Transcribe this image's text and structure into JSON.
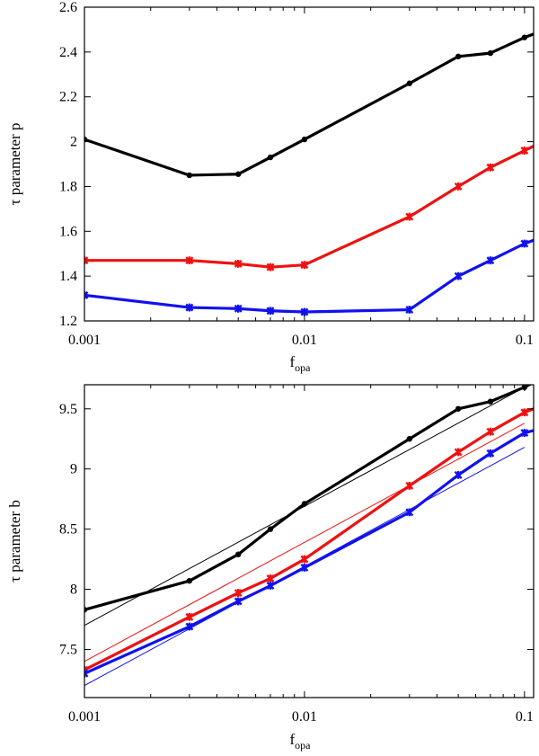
{
  "chart_data": [
    {
      "type": "line",
      "ylabel": "τ parameter p",
      "xlabel_main": "f",
      "xlabel_sub": "opa",
      "xscale": "log",
      "xlim": [
        0.001,
        0.11
      ],
      "ylim": [
        1.2,
        2.6
      ],
      "xticks": [
        0.001,
        0.01,
        0.1
      ],
      "xtick_labels": [
        "0.001",
        "0.01",
        "0.1"
      ],
      "yticks": [
        1.2,
        1.4,
        1.6,
        1.8,
        2.0,
        2.2,
        2.4,
        2.6
      ],
      "ytick_labels": [
        "1.2",
        "1.4",
        "1.6",
        "1.8",
        "2",
        "2.2",
        "2.4",
        "2.6"
      ],
      "series": [
        {
          "name": "black",
          "color": "#000000",
          "marker": "circle",
          "x": [
            0.001,
            0.003,
            0.005,
            0.007,
            0.01,
            0.03,
            0.05,
            0.07,
            0.1,
            0.11
          ],
          "y": [
            2.01,
            1.85,
            1.855,
            1.93,
            2.01,
            2.26,
            2.38,
            2.395,
            2.465,
            2.48
          ]
        },
        {
          "name": "red",
          "color": "#ee1111",
          "marker": "cross",
          "x": [
            0.001,
            0.003,
            0.005,
            0.007,
            0.01,
            0.03,
            0.05,
            0.07,
            0.1,
            0.11
          ],
          "y": [
            1.47,
            1.47,
            1.455,
            1.44,
            1.45,
            1.665,
            1.8,
            1.885,
            1.96,
            1.98
          ]
        },
        {
          "name": "blue",
          "color": "#1111ee",
          "marker": "cross",
          "x": [
            0.001,
            0.003,
            0.005,
            0.007,
            0.01,
            0.03,
            0.05,
            0.07,
            0.1,
            0.11
          ],
          "y": [
            1.315,
            1.26,
            1.255,
            1.245,
            1.24,
            1.25,
            1.4,
            1.47,
            1.545,
            1.56
          ]
        }
      ],
      "fit_lines": []
    },
    {
      "type": "line",
      "ylabel": "τ parameter b",
      "xlabel_main": "f",
      "xlabel_sub": "opa",
      "xscale": "log",
      "xlim": [
        0.001,
        0.11
      ],
      "ylim": [
        7.1,
        9.7
      ],
      "xticks": [
        0.001,
        0.01,
        0.1
      ],
      "xtick_labels": [
        "0.001",
        "0.01",
        "0.1"
      ],
      "yticks": [
        7.5,
        8.0,
        8.5,
        9.0,
        9.5
      ],
      "ytick_labels": [
        "7.5",
        "8",
        "8.5",
        "9",
        "9.5"
      ],
      "series": [
        {
          "name": "black",
          "color": "#000000",
          "marker": "circle",
          "x": [
            0.001,
            0.003,
            0.005,
            0.007,
            0.01,
            0.03,
            0.05,
            0.07,
            0.1,
            0.11
          ],
          "y": [
            7.83,
            8.07,
            8.29,
            8.5,
            8.71,
            9.25,
            9.5,
            9.56,
            9.68,
            9.72
          ]
        },
        {
          "name": "red",
          "color": "#ee1111",
          "marker": "cross",
          "x": [
            0.001,
            0.003,
            0.005,
            0.007,
            0.01,
            0.03,
            0.05,
            0.07,
            0.1,
            0.11
          ],
          "y": [
            7.33,
            7.77,
            7.97,
            8.09,
            8.25,
            8.86,
            9.14,
            9.31,
            9.47,
            9.5
          ]
        },
        {
          "name": "blue",
          "color": "#1111ee",
          "marker": "cross",
          "x": [
            0.001,
            0.003,
            0.005,
            0.007,
            0.01,
            0.03,
            0.05,
            0.07,
            0.1,
            0.11
          ],
          "y": [
            7.3,
            7.69,
            7.9,
            8.03,
            8.18,
            8.64,
            8.95,
            9.13,
            9.3,
            9.32
          ]
        }
      ],
      "fit_lines": [
        {
          "name": "black-fit",
          "color": "#000000",
          "x": [
            0.001,
            0.11
          ],
          "y": [
            7.7,
            9.72
          ]
        },
        {
          "name": "red-fit",
          "color": "#ee1111",
          "x": [
            0.001,
            0.1
          ],
          "y": [
            7.4,
            9.38
          ]
        },
        {
          "name": "blue-fit",
          "color": "#1111ee",
          "x": [
            0.001,
            0.1
          ],
          "y": [
            7.2,
            9.18
          ]
        }
      ]
    }
  ]
}
